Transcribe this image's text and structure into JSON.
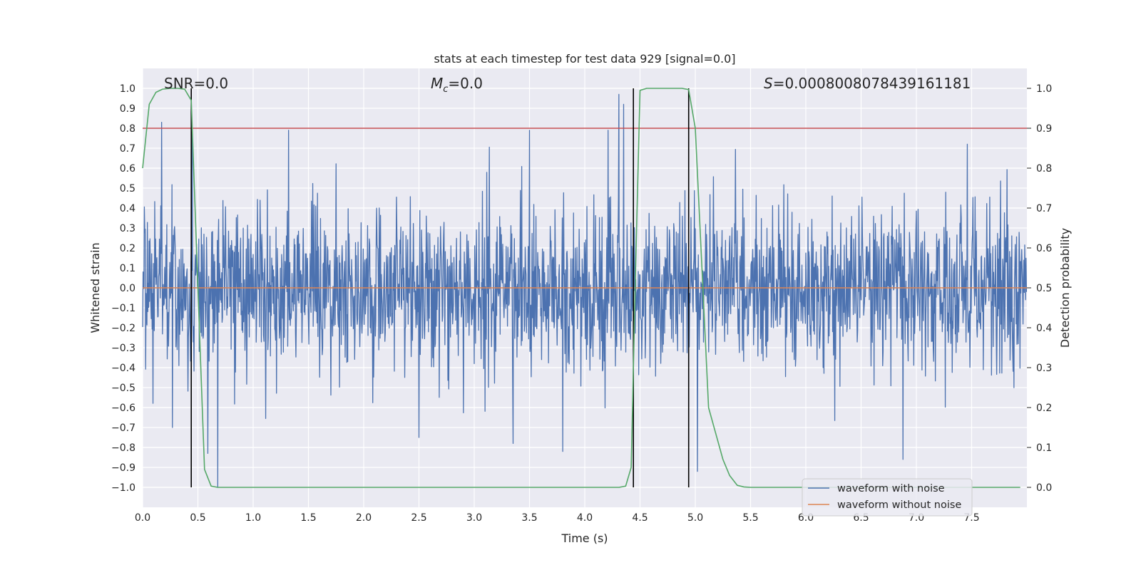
{
  "chart_data": {
    "type": "line",
    "title": "stats at each timestep for test data 929 [signal=0.0]",
    "xlabel": "Time (s)",
    "ylabel_left": "Whitened strain",
    "ylabel_right": "Detection probability",
    "xlim": [
      0.0,
      8.0
    ],
    "ylim_left": [
      -1.1,
      1.1
    ],
    "ylim_right": [
      -0.05,
      1.05
    ],
    "x_ticks": [
      0.0,
      0.5,
      1.0,
      1.5,
      2.0,
      2.5,
      3.0,
      3.5,
      4.0,
      4.5,
      5.0,
      5.5,
      6.0,
      6.5,
      7.0,
      7.5
    ],
    "x_tick_labels": [
      "0.0",
      "0.5",
      "1.0",
      "1.5",
      "2.0",
      "2.5",
      "3.0",
      "3.5",
      "4.0",
      "4.5",
      "5.0",
      "5.5",
      "6.0",
      "6.5",
      "7.0",
      "7.5"
    ],
    "y_left_ticks": [
      1.0,
      0.9,
      0.8,
      0.7,
      0.6,
      0.5,
      0.4,
      0.3,
      0.2,
      0.1,
      0.0,
      -0.1,
      -0.2,
      -0.3,
      -0.4,
      -0.5,
      -0.6,
      -0.7,
      -0.8,
      -0.9,
      -1.0
    ],
    "y_left_tick_labels": [
      "1.0",
      "0.9",
      "0.8",
      "0.7",
      "0.6",
      "0.5",
      "0.4",
      "0.3",
      "0.2",
      "0.1",
      "0.0",
      "−0.1",
      "−0.2",
      "−0.3",
      "−0.4",
      "−0.5",
      "−0.6",
      "−0.7",
      "−0.8",
      "−0.9",
      "−1.0"
    ],
    "y_right_ticks": [
      1.0,
      0.9,
      0.8,
      0.7,
      0.6,
      0.5,
      0.4,
      0.3,
      0.2,
      0.1,
      0.0
    ],
    "y_right_tick_labels": [
      "1.0",
      "0.9",
      "0.8",
      "0.7",
      "0.6",
      "0.5",
      "0.4",
      "0.3",
      "0.2",
      "0.1",
      "0.0"
    ],
    "annotations": {
      "snr": "SNR=0.0",
      "mc_symbol": "M",
      "mc_subscript": "c",
      "mc_value": "=0.0",
      "s_symbol": "S",
      "s_value": "=0.0008008078439161181"
    },
    "series": [
      {
        "name": "waveform with noise",
        "color": "#4c72b0",
        "axis": "left",
        "description_type": "noise",
        "duration": 8.0,
        "n_samples": 2048,
        "typical_upper_envelope": 0.4,
        "typical_lower_envelope": -0.4,
        "max_value": 0.97,
        "min_value": -1.0,
        "notable_peaks": [
          [
            0.17,
            0.83
          ],
          [
            0.45,
            0.78
          ],
          [
            1.32,
            0.79
          ],
          [
            3.5,
            0.79
          ],
          [
            4.21,
            0.79
          ],
          [
            4.31,
            0.97
          ],
          [
            4.35,
            0.92
          ],
          [
            7.46,
            0.72
          ]
        ],
        "notable_troughs": [
          [
            0.27,
            -0.7
          ],
          [
            0.59,
            -0.83
          ],
          [
            0.68,
            -1.0
          ],
          [
            2.5,
            -0.75
          ],
          [
            3.35,
            -0.78
          ],
          [
            3.8,
            -0.82
          ],
          [
            5.02,
            -0.92
          ],
          [
            6.88,
            -0.86
          ]
        ]
      },
      {
        "name": "waveform without noise",
        "color": "#dd8452",
        "axis": "left",
        "x": [
          0.0,
          8.0
        ],
        "y": [
          0.0,
          0.0
        ]
      },
      {
        "name": "detection probability",
        "color": "#55a868",
        "axis": "right",
        "x": [
          0.0,
          0.06,
          0.12,
          0.18,
          0.25,
          0.32,
          0.38,
          0.44,
          0.5,
          0.56,
          0.62,
          0.68,
          1.0,
          2.0,
          3.0,
          4.0,
          4.31,
          4.37,
          4.42,
          4.46,
          4.5,
          4.56,
          4.62,
          4.75,
          4.88,
          4.94,
          5.0,
          5.06,
          5.12,
          5.19,
          5.25,
          5.31,
          5.38,
          5.44,
          5.5,
          6.0,
          7.0,
          7.94
        ],
        "y": [
          0.8,
          0.96,
          0.99,
          0.998,
          1.0,
          1.0,
          0.998,
          0.97,
          0.5,
          0.045,
          0.003,
          0.0,
          0.0,
          0.0,
          0.0,
          0.0,
          0.0,
          0.003,
          0.05,
          0.55,
          0.995,
          1.0,
          1.0,
          1.0,
          1.0,
          0.997,
          0.9,
          0.55,
          0.2,
          0.13,
          0.07,
          0.03,
          0.005,
          0.001,
          0.0,
          0.0,
          0.0,
          0.0
        ]
      },
      {
        "name": "threshold",
        "color": "#c44e52",
        "axis": "right",
        "y": 0.9
      }
    ],
    "vertical_lines": [
      0.44,
      4.44,
      4.94
    ],
    "vertical_lines_range": [
      0.0,
      1.0
    ],
    "legend": {
      "location": "lower-right",
      "entries": [
        "waveform with noise",
        "waveform without noise"
      ]
    },
    "grid": true
  }
}
